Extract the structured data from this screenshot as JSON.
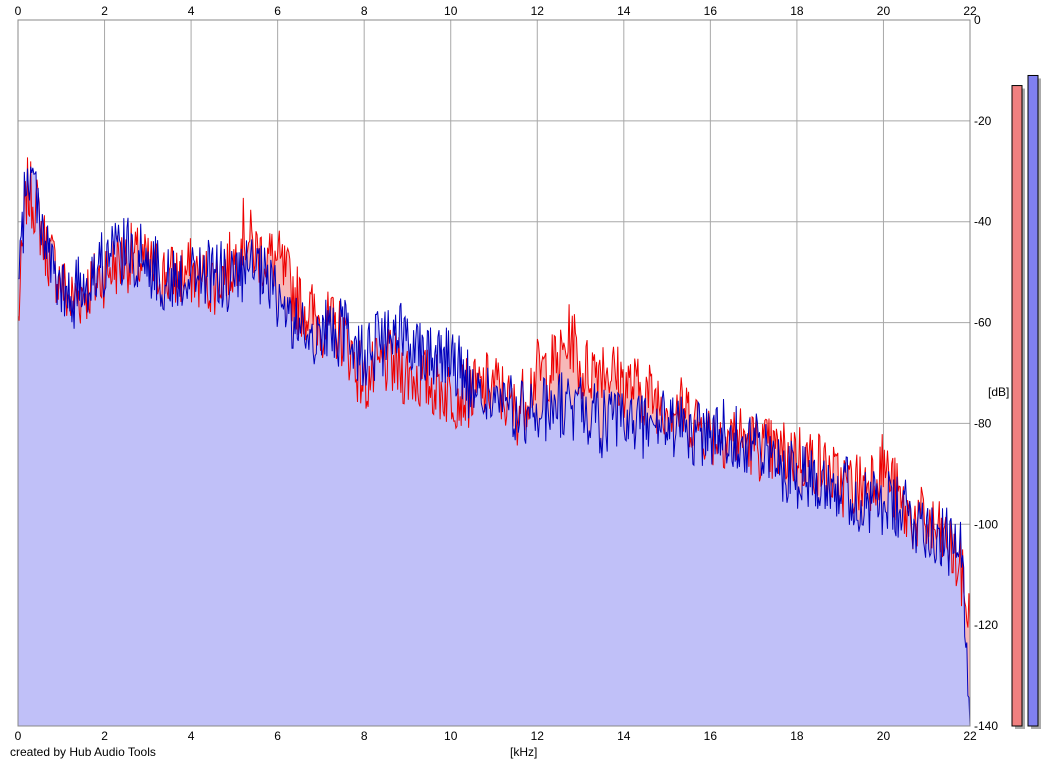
{
  "credit": "created by Hub Audio Tools",
  "chart_data": {
    "type": "area",
    "xlabel": "[kHz]",
    "ylabel": "[dB]",
    "xlim": [
      0,
      22
    ],
    "ylim": [
      -140,
      0
    ],
    "x_ticks": [
      "0",
      "2",
      "4",
      "6",
      "8",
      "10",
      "12",
      "14",
      "16",
      "18",
      "20",
      "22"
    ],
    "y_ticks": [
      "0",
      "-20",
      "-40",
      "-60",
      "-80",
      "-100",
      "-120",
      "-140"
    ],
    "grid": true,
    "colors": {
      "red_channel": "#ee0000",
      "blue_channel": "#0000bb",
      "blue_fill": "#c0c0f8",
      "red_fill": "#f6b8b8",
      "grid": "#a8a8a8"
    },
    "series": [
      {
        "name": "",
        "color": "#ee0000",
        "x": [
          0,
          0.2,
          0.4,
          0.6,
          0.8,
          1.0,
          1.2,
          1.5,
          1.8,
          2.0,
          2.3,
          2.6,
          3.0,
          3.5,
          4.0,
          4.5,
          5.0,
          5.2,
          5.5,
          6.0,
          6.5,
          7.0,
          7.5,
          8.0,
          8.5,
          9.0,
          9.5,
          10.0,
          10.5,
          11.0,
          11.5,
          12.0,
          12.5,
          12.8,
          13.0,
          13.5,
          14.0,
          14.5,
          15.0,
          15.5,
          16.0,
          16.5,
          17.0,
          17.5,
          18.0,
          18.5,
          19.0,
          19.5,
          20.0,
          20.5,
          21.0,
          21.5,
          21.8,
          22.0
        ],
        "y": [
          -60,
          -34,
          -36,
          -44,
          -48,
          -52,
          -56,
          -54,
          -52,
          -50,
          -48,
          -47,
          -49,
          -51,
          -50,
          -52,
          -48,
          -42,
          -46,
          -48,
          -56,
          -60,
          -62,
          -72,
          -68,
          -70,
          -72,
          -74,
          -74,
          -72,
          -78,
          -70,
          -68,
          -62,
          -70,
          -68,
          -72,
          -74,
          -76,
          -78,
          -82,
          -82,
          -84,
          -86,
          -86,
          -88,
          -92,
          -92,
          -88,
          -98,
          -100,
          -104,
          -110,
          -120
        ]
      },
      {
        "name": "",
        "color": "#0000bb",
        "x": [
          0,
          0.2,
          0.4,
          0.6,
          0.8,
          1.0,
          1.2,
          1.5,
          1.8,
          2.0,
          2.3,
          2.6,
          3.0,
          3.5,
          4.0,
          4.5,
          5.0,
          5.2,
          5.5,
          6.0,
          6.5,
          7.0,
          7.5,
          8.0,
          8.5,
          9.0,
          9.5,
          10.0,
          10.5,
          11.0,
          11.5,
          12.0,
          12.5,
          12.8,
          13.0,
          13.5,
          14.0,
          14.5,
          15.0,
          15.5,
          16.0,
          16.5,
          17.0,
          17.5,
          18.0,
          18.5,
          19.0,
          19.5,
          20.0,
          20.5,
          21.0,
          21.5,
          21.8,
          22.0
        ],
        "y": [
          -55,
          -30,
          -33,
          -42,
          -50,
          -54,
          -56,
          -52,
          -50,
          -48,
          -46,
          -46,
          -48,
          -52,
          -50,
          -50,
          -52,
          -50,
          -50,
          -55,
          -62,
          -62,
          -62,
          -66,
          -64,
          -62,
          -66,
          -66,
          -74,
          -75,
          -78,
          -78,
          -76,
          -78,
          -76,
          -80,
          -80,
          -80,
          -80,
          -82,
          -82,
          -82,
          -84,
          -88,
          -90,
          -90,
          -92,
          -96,
          -96,
          -98,
          -100,
          -104,
          -106,
          -140
        ]
      }
    ],
    "level_meters": [
      {
        "color": "#f08080",
        "value_db": -13
      },
      {
        "color": "#8080f0",
        "value_db": -11
      }
    ]
  }
}
